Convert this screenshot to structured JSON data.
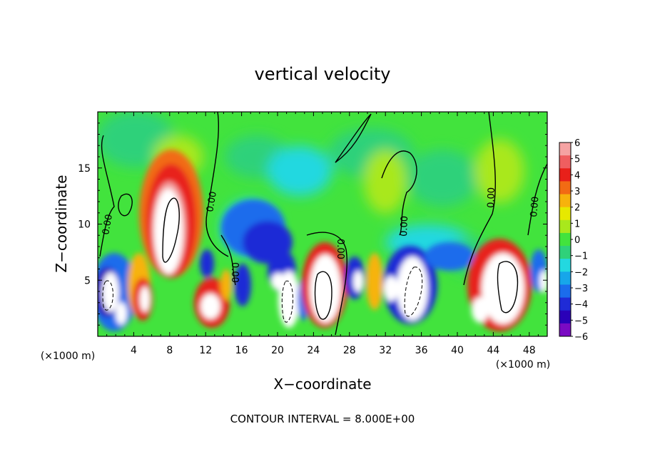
{
  "chart_data": {
    "type": "heatmap",
    "title": "vertical velocity",
    "xlabel": "X−coordinate",
    "ylabel": "Z−coordinate",
    "x_unit": "(×1000 m)",
    "z_unit": "(×1000 m)",
    "xlim": [
      0,
      50
    ],
    "ylim": [
      0,
      20
    ],
    "x_ticks": [
      "4",
      "8",
      "12",
      "16",
      "20",
      "24",
      "28",
      "32",
      "36",
      "40",
      "44",
      "48"
    ],
    "y_ticks": [
      "5",
      "10",
      "15"
    ],
    "colorbar": {
      "ticks": [
        "6",
        "5",
        "4",
        "3",
        "2",
        "1",
        "0",
        "−1",
        "−2",
        "−3",
        "−4",
        "−5",
        "−6"
      ],
      "colors": [
        "#f5a3a3",
        "#ef5e60",
        "#e8201a",
        "#f26b14",
        "#f7b30c",
        "#e7e900",
        "#a9e81c",
        "#42e33d",
        "#2fd17a",
        "#23d8e0",
        "#17a6ea",
        "#1b6cec",
        "#1f2bd6",
        "#2a00b8",
        "#7a0ac3"
      ]
    },
    "contour_labels": [
      "0.00",
      "0.00",
      "0.00",
      "0.00",
      "0.00",
      "0.00",
      "0.00"
    ],
    "cells": [
      {
        "x": 4,
        "z": 17,
        "w": 0.0
      },
      {
        "x": 12,
        "z": 17,
        "w": 0.3
      },
      {
        "x": 1,
        "z": 4,
        "w": -6
      },
      {
        "x": 3,
        "z": 3,
        "w": -5
      },
      {
        "x": 5.5,
        "z": 5,
        "w": 1.5
      },
      {
        "x": 8.5,
        "z": 9,
        "w": 6
      },
      {
        "x": 8.5,
        "z": 13.5,
        "w": 4
      },
      {
        "x": 12.5,
        "z": 3,
        "w": 5
      },
      {
        "x": 14,
        "z": 7,
        "w": -3
      },
      {
        "x": 17,
        "z": 10,
        "w": -3
      },
      {
        "x": 19,
        "z": 11,
        "w": -5
      },
      {
        "x": 20,
        "z": 3,
        "w": 6
      },
      {
        "x": 25,
        "z": 4,
        "w": 6
      },
      {
        "x": 29,
        "z": 5,
        "w": -5
      },
      {
        "x": 30,
        "z": 5,
        "w": 6
      },
      {
        "x": 34,
        "z": 5,
        "w": -6
      },
      {
        "x": 36,
        "z": 8,
        "w": -3
      },
      {
        "x": 45,
        "z": 4.5,
        "w": 6
      },
      {
        "x": 49,
        "z": 8,
        "w": -2
      }
    ]
  },
  "footer": {
    "contour_interval": "CONTOUR INTERVAL = 8.000E+00"
  }
}
